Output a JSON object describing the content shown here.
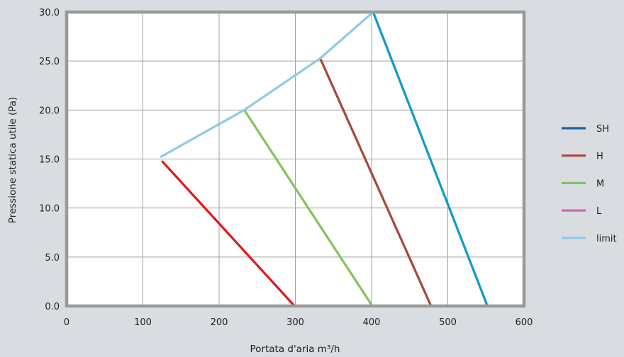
{
  "chart_data": {
    "type": "line",
    "title": "",
    "xlabel": "Portata d'aria m³/h",
    "ylabel": "Pressione statica utile (Pa)",
    "xlim": [
      0,
      600
    ],
    "ylim": [
      0,
      30
    ],
    "x_ticks": [
      "0",
      "100",
      "200",
      "300",
      "400",
      "500",
      "600"
    ],
    "y_ticks": [
      "0.0",
      "5.0",
      "10.0",
      "15.0",
      "20.0",
      "25.0",
      "30.0"
    ],
    "grid": true,
    "legend_position": "right",
    "series": [
      {
        "name": "SH",
        "color": "#0f99cc",
        "legend_color": "#1466a8",
        "points": [
          [
            402,
            30
          ],
          [
            552,
            0
          ]
        ]
      },
      {
        "name": "H",
        "color": "#a8463e",
        "legend_color": "#a8463e",
        "points": [
          [
            333,
            25.2
          ],
          [
            478,
            0
          ]
        ]
      },
      {
        "name": "M",
        "color": "#84c25a",
        "legend_color": "#84c25a",
        "points": [
          [
            233,
            20
          ],
          [
            401,
            0
          ]
        ]
      },
      {
        "name": "L",
        "color": "#e01717",
        "legend_color": "#c86ab0",
        "points": [
          [
            125,
            14.8
          ],
          [
            299,
            0
          ]
        ]
      },
      {
        "name": "limit",
        "color": "#8ecbe6",
        "legend_color": "#8ecbe6",
        "points": [
          [
            123,
            15.2
          ],
          [
            233,
            20
          ],
          [
            333,
            25.3
          ],
          [
            402,
            30
          ]
        ]
      }
    ]
  }
}
